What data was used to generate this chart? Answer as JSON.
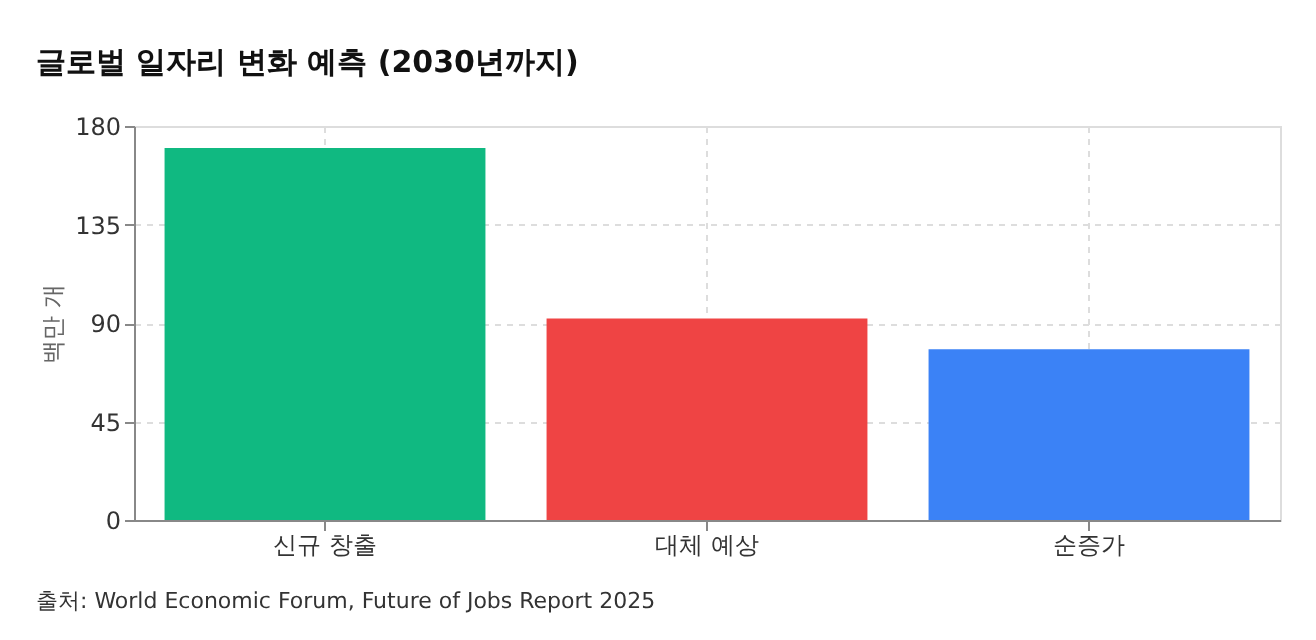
{
  "chart_data": {
    "type": "bar",
    "title": "글로벌 일자리 변화 예측 (2030년까지)",
    "ylabel": "백만 개",
    "categories": [
      "신규 창출",
      "대체 예상",
      "순증가"
    ],
    "values": [
      170,
      92,
      78
    ],
    "colors": [
      "#10b981",
      "#ef4444",
      "#3b82f6"
    ],
    "ylim": [
      0,
      180
    ],
    "yticks": [
      0,
      45,
      90,
      135,
      180
    ],
    "grid": true,
    "legend": false,
    "annotations": [
      "출처: World Economic Forum, Future of Jobs Report 2025"
    ]
  }
}
